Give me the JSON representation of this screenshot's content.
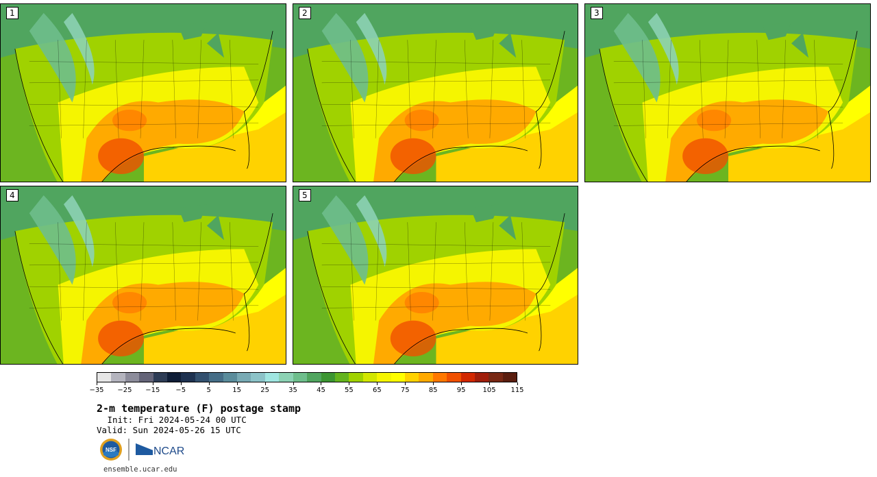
{
  "panels": [
    {
      "label": "1"
    },
    {
      "label": "2"
    },
    {
      "label": "3"
    },
    {
      "label": "4"
    },
    {
      "label": "5"
    }
  ],
  "colorbar": {
    "colors": [
      "#e6e6e6",
      "#b4b4be",
      "#8c8c9b",
      "#646478",
      "#2d3c55",
      "#0f1e37",
      "#1e3250",
      "#32506e",
      "#466e87",
      "#5a8c9b",
      "#78aab4",
      "#8cc3c8",
      "#a0e6e1",
      "#8cd2b4",
      "#6ebe8c",
      "#50a55f",
      "#3c9632",
      "#64b41e",
      "#a0d200",
      "#d2e600",
      "#f5f500",
      "#ffff00",
      "#ffd200",
      "#ffaa00",
      "#ff7800",
      "#f05000",
      "#d22800",
      "#a01e0a",
      "#782814",
      "#5a1e0f"
    ],
    "tick_values": [
      "−35",
      "−25",
      "−15",
      "−5",
      "5",
      "15",
      "25",
      "35",
      "45",
      "55",
      "65",
      "75",
      "85",
      "95",
      "105",
      "115"
    ]
  },
  "title": "2-m temperature (F) postage stamp",
  "init": " Init: Fri 2024-05-24 00 UTC",
  "valid": "Valid: Sun 2024-05-26 15 UTC",
  "logos": {
    "nsf": "NSF",
    "ncar": "NCAR"
  },
  "url": "ensemble.ucar.edu"
}
